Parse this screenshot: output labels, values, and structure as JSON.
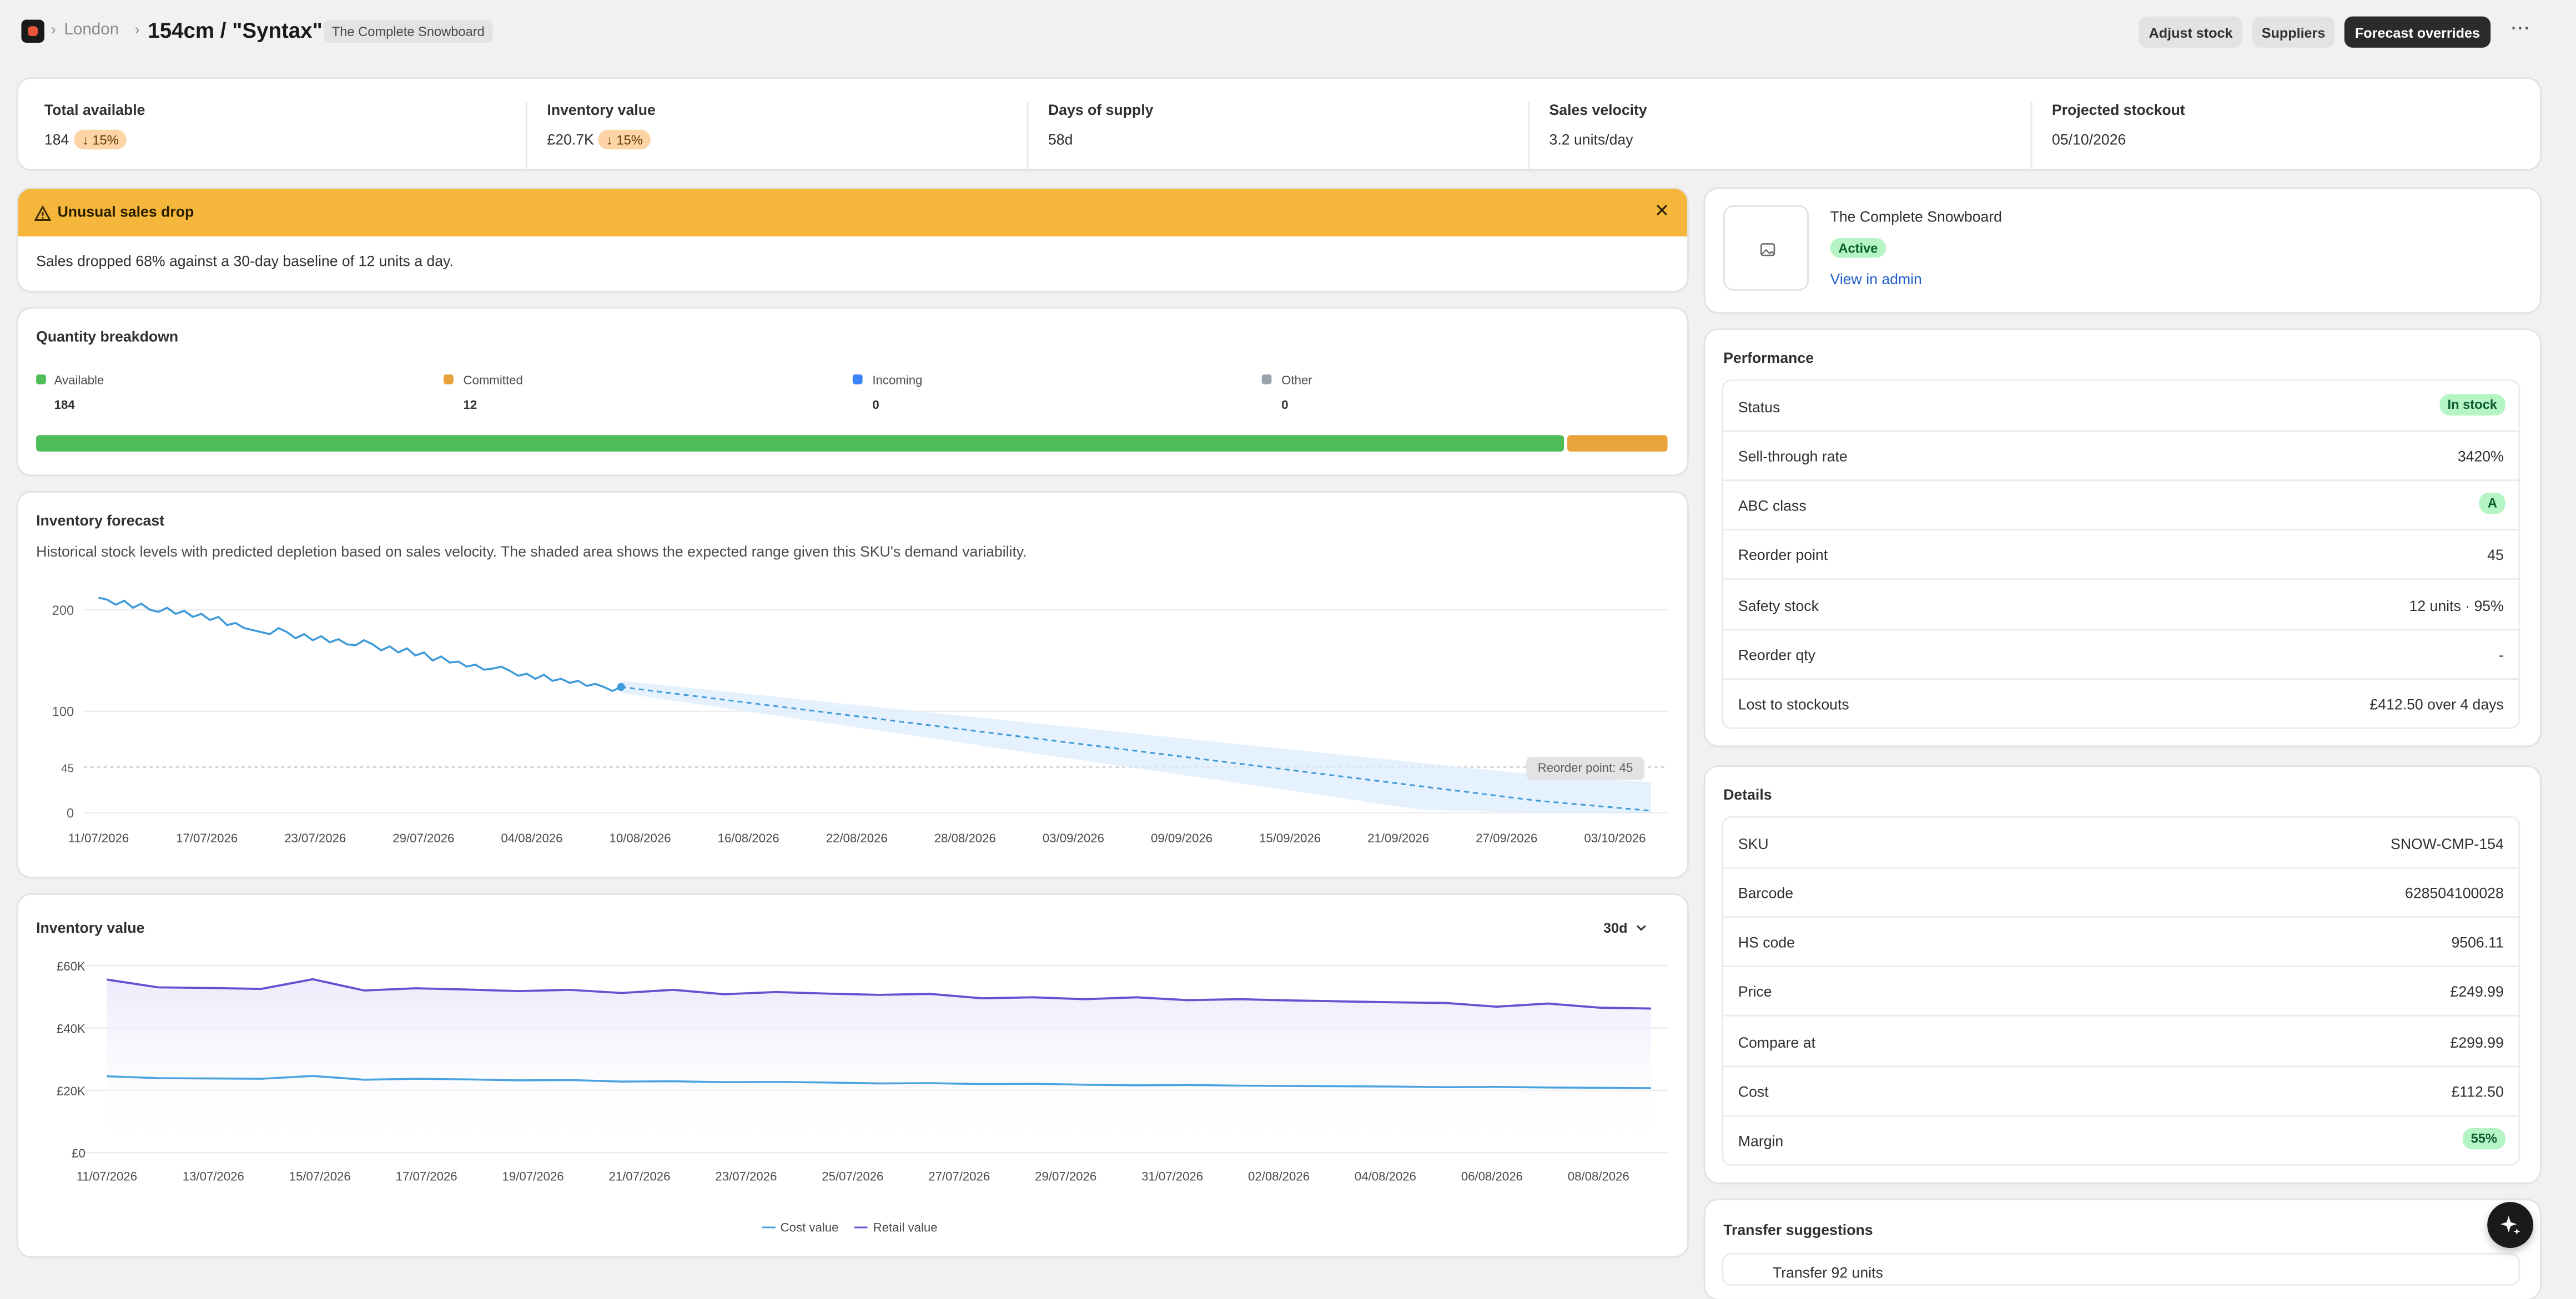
{
  "breadcrumb": {
    "location": "London",
    "title": "154cm / \"Syntax\"",
    "product_tag": "The Complete Snowboard"
  },
  "actions": {
    "adjust": "Adjust stock",
    "suppliers": "Suppliers",
    "forecast": "Forecast overrides"
  },
  "kpis": [
    {
      "label": "Total available",
      "value": "184",
      "delta": "↓ 15%"
    },
    {
      "label": "Inventory value",
      "value": "£20.7K",
      "delta": "↓ 15%"
    },
    {
      "label": "Days of supply",
      "value": "58d"
    },
    {
      "label": "Sales velocity",
      "value": "3.2 units/day"
    },
    {
      "label": "Projected stockout",
      "value": "05/10/2026"
    }
  ],
  "alert": {
    "title": "Unusual sales drop",
    "body": "Sales dropped 68% against a 30-day baseline of 12 units a day."
  },
  "breakdown": {
    "title": "Quantity breakdown",
    "items": [
      {
        "label": "Available",
        "value": "184",
        "color": "#4fbc5a"
      },
      {
        "label": "Committed",
        "value": "12",
        "color": "#e8a33a"
      },
      {
        "label": "Incoming",
        "value": "0",
        "color": "#3b82f6"
      },
      {
        "label": "Other",
        "value": "0",
        "color": "#9aa3ad"
      }
    ]
  },
  "forecast": {
    "title": "Inventory forecast",
    "description": "Historical stock levels with predicted depletion based on sales velocity. The shaded area shows the expected range given this SKU's demand variability.",
    "reorder_label": "Reorder point: 45"
  },
  "value_chart": {
    "title": "Inventory value",
    "range": "30d",
    "legend_cost": "Cost value",
    "legend_retail": "Retail value"
  },
  "product": {
    "name": "The Complete Snowboard",
    "status": "Active",
    "link": "View in admin"
  },
  "performance": {
    "title": "Performance",
    "rows": [
      {
        "label": "Status",
        "value": "In stock",
        "badge": true
      },
      {
        "label": "Sell-through rate",
        "value": "3420%"
      },
      {
        "label": "ABC class",
        "value": "A",
        "badge": true
      },
      {
        "label": "Reorder point",
        "value": "45"
      },
      {
        "label": "Safety stock",
        "value": "12 units · 95%"
      },
      {
        "label": "Reorder qty",
        "value": "-"
      },
      {
        "label": "Lost to stockouts",
        "value": "£412.50 over 4 days"
      }
    ]
  },
  "details": {
    "title": "Details",
    "rows": [
      {
        "label": "SKU",
        "value": "SNOW-CMP-154"
      },
      {
        "label": "Barcode",
        "value": "628504100028"
      },
      {
        "label": "HS code",
        "value": "9506.11"
      },
      {
        "label": "Price",
        "value": "£249.99"
      },
      {
        "label": "Compare at",
        "value": "£299.99"
      },
      {
        "label": "Cost",
        "value": "£112.50"
      },
      {
        "label": "Margin",
        "value": "55%",
        "badge": true
      }
    ]
  },
  "transfer": {
    "title": "Transfer suggestions",
    "preview": "Transfer 92 units"
  },
  "chart_data": [
    {
      "type": "line",
      "title": "Inventory forecast",
      "x_ticks": [
        "11/07/2026",
        "17/07/2026",
        "23/07/2026",
        "29/07/2026",
        "04/08/2026",
        "10/08/2026",
        "16/08/2026",
        "22/08/2026",
        "28/08/2026",
        "03/09/2026",
        "09/09/2026",
        "15/09/2026",
        "21/09/2026",
        "27/09/2026",
        "03/10/2026"
      ],
      "y_ticks": [
        0,
        45,
        100,
        200
      ],
      "ylim": [
        0,
        220
      ],
      "series": [
        {
          "values": [
            212,
            210,
            205,
            209,
            202,
            206,
            200,
            198,
            202,
            196,
            199,
            193,
            196,
            190,
            193,
            185,
            187,
            182,
            180,
            178,
            176,
            182,
            178,
            172,
            176,
            170,
            174,
            168,
            171,
            166,
            165,
            170,
            166,
            160,
            164,
            158,
            162,
            155,
            158,
            150,
            154,
            148,
            149,
            144,
            146,
            141,
            142,
            144,
            140,
            135,
            137,
            132,
            136,
            130,
            132,
            128,
            130,
            125,
            127,
            124,
            120,
            124
          ]
        },
        {
          "values": [
            124,
            110,
            96,
            82,
            68,
            54,
            40,
            26,
            12,
            2
          ]
        }
      ],
      "reference_line": 45,
      "annotations": [
        "Reorder point: 45"
      ]
    },
    {
      "type": "line",
      "title": "Inventory value",
      "x_ticks": [
        "11/07/2026",
        "13/07/2026",
        "15/07/2026",
        "17/07/2026",
        "19/07/2026",
        "21/07/2026",
        "23/07/2026",
        "25/07/2026",
        "27/07/2026",
        "29/07/2026",
        "31/07/2026",
        "02/08/2026",
        "04/08/2026",
        "06/08/2026",
        "08/08/2026"
      ],
      "y_ticks": [
        "£0",
        "£20K",
        "£40K",
        "£60K"
      ],
      "ylim": [
        0,
        60000
      ],
      "series": [
        {
          "name": "Cost value",
          "values": [
            24500,
            23900,
            23800,
            23700,
            24600,
            23400,
            23700,
            23500,
            23200,
            23300,
            22800,
            22900,
            22600,
            22700,
            22500,
            22200,
            22300,
            22000,
            22100,
            21800,
            21600,
            21700,
            21500,
            21400,
            21300,
            21200,
            21000,
            21100,
            20900,
            20800,
            20700
          ]
        },
        {
          "name": "Retail value",
          "values": [
            55500,
            53000,
            52800,
            52500,
            55600,
            52000,
            52700,
            52300,
            51800,
            52200,
            51200,
            52200,
            50800,
            51500,
            51000,
            50600,
            50900,
            49500,
            49800,
            49200,
            49800,
            48900,
            49200,
            48800,
            48500,
            48200,
            48000,
            46800,
            47800,
            46500,
            46200
          ]
        }
      ]
    }
  ]
}
